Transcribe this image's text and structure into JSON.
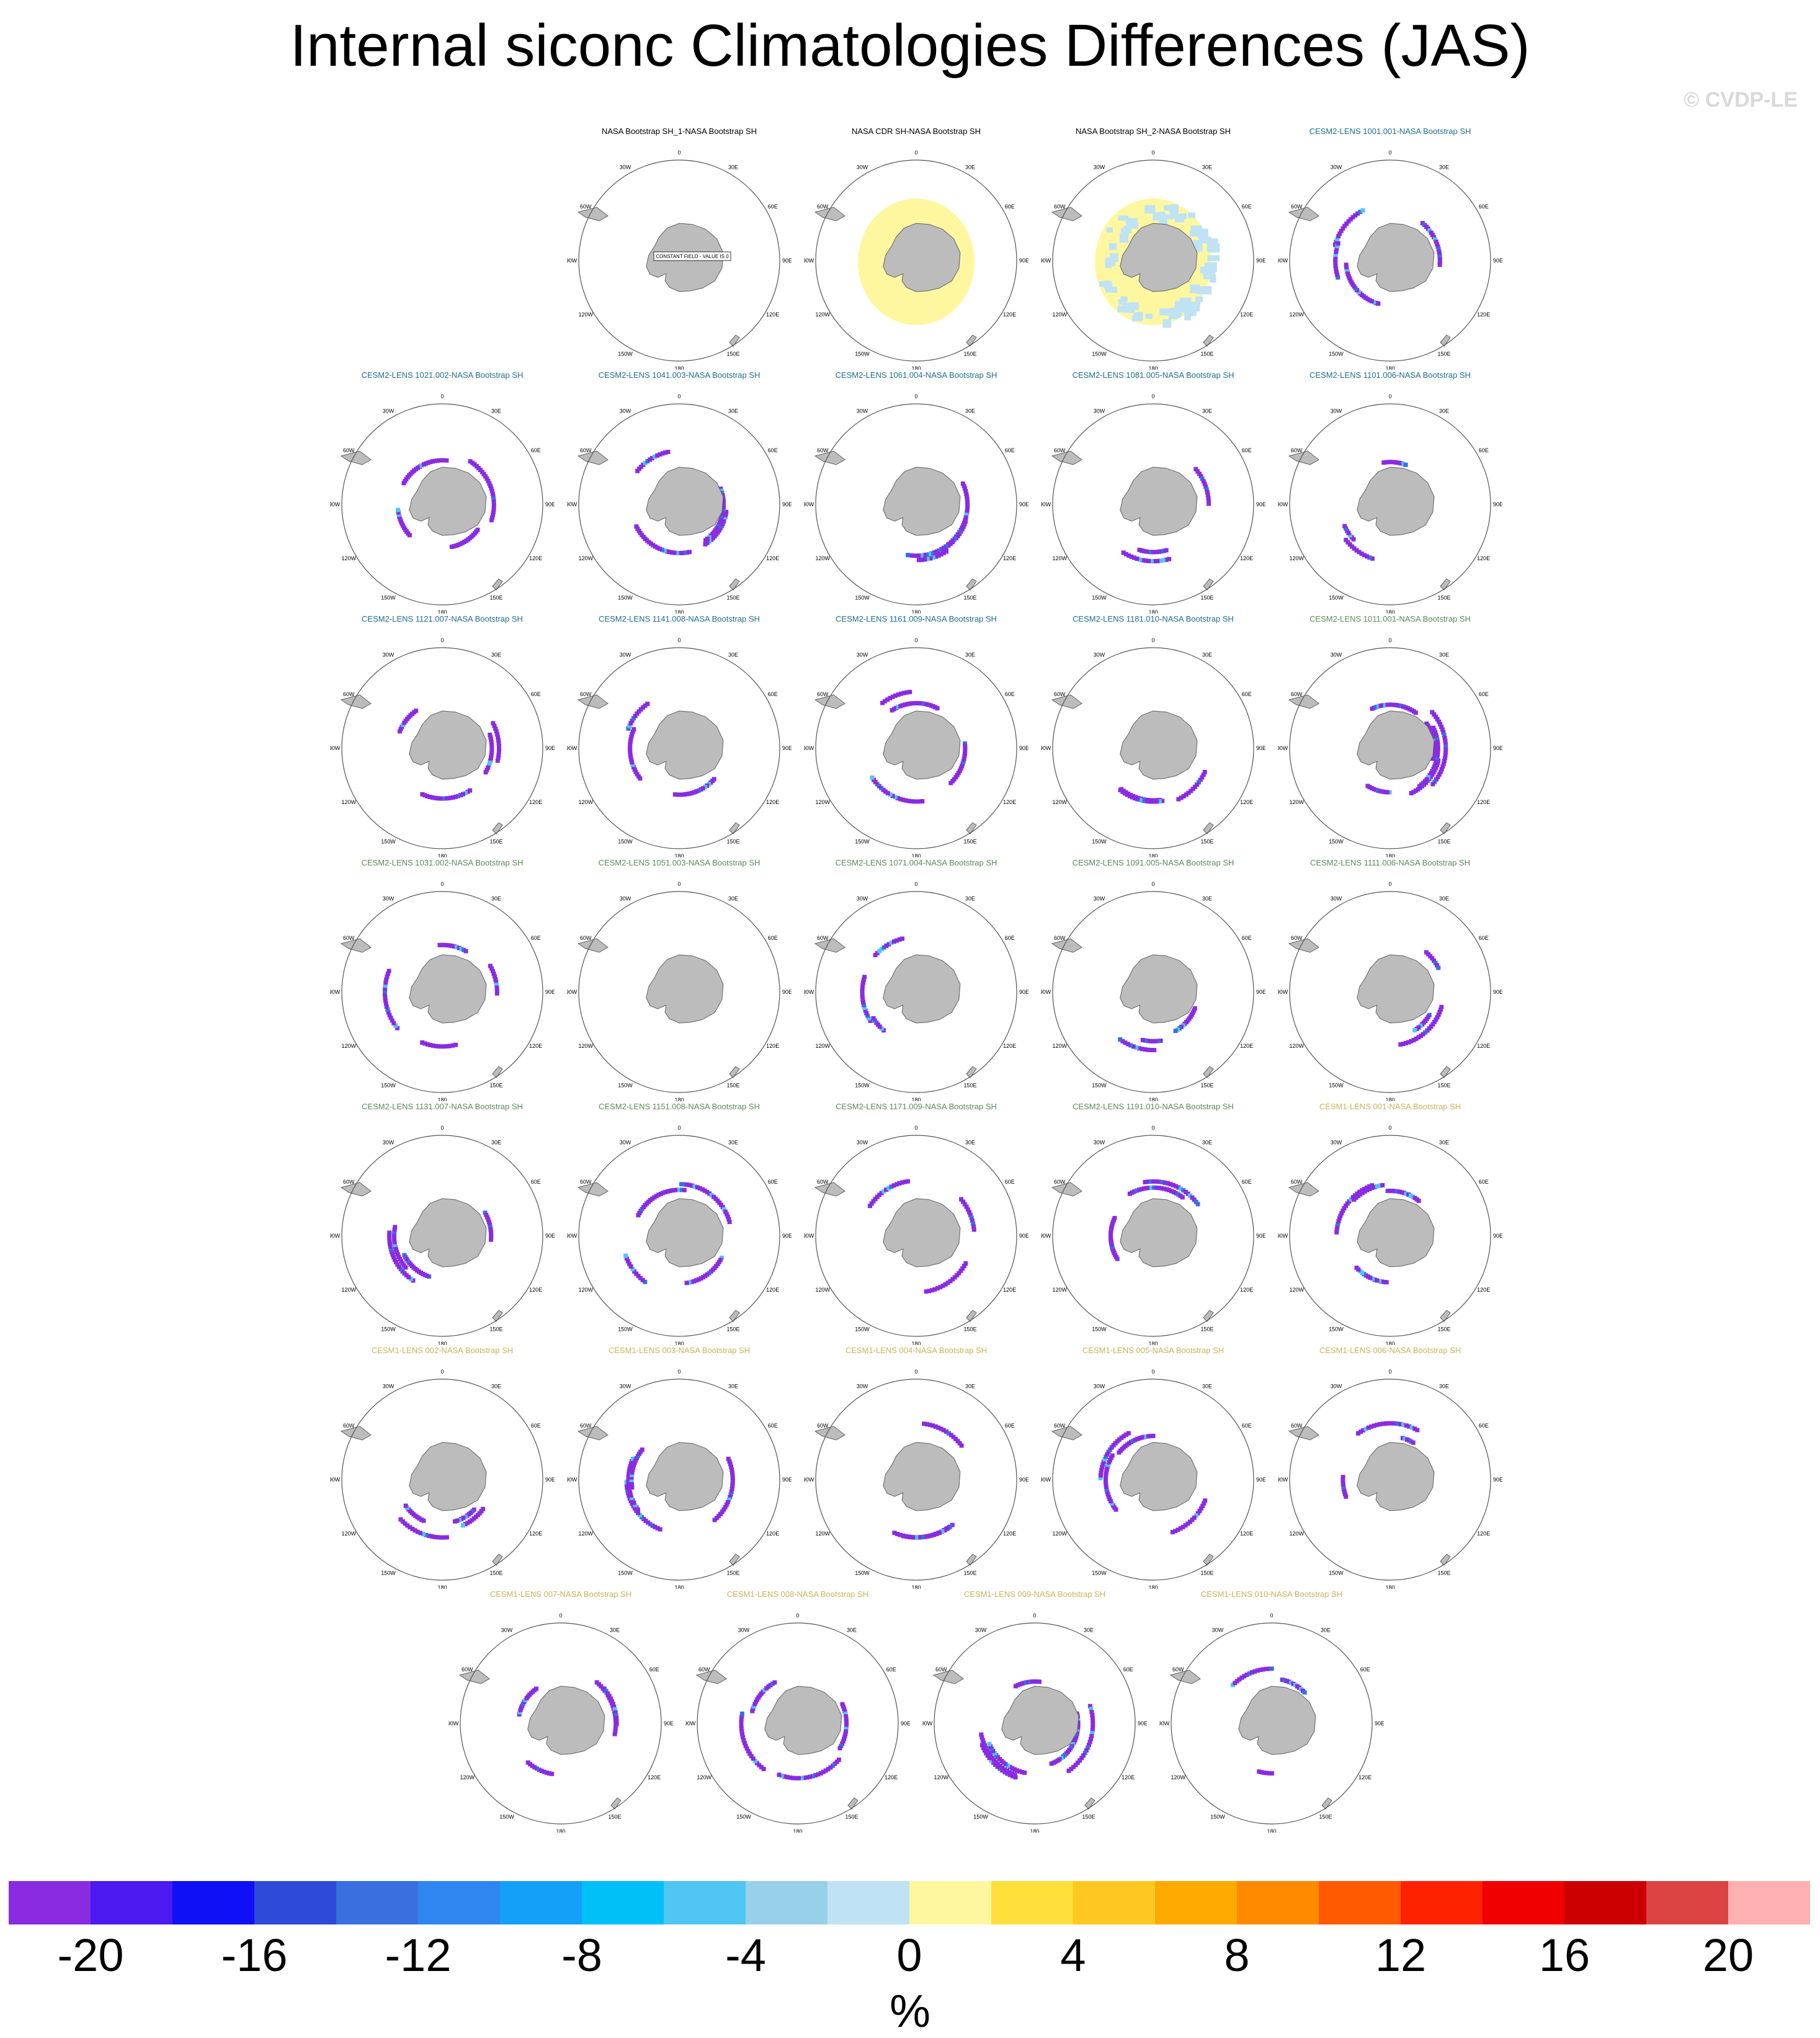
{
  "title": "Internal siconc Climatologies Differences (JAS)",
  "copyright": "© CVDP-LE",
  "lon_labels": [
    "0",
    "30E",
    "60E",
    "90E",
    "120E",
    "150E",
    "180",
    "150W",
    "120W",
    "90W",
    "60W",
    "30W"
  ],
  "colors": {
    "land": "#bcbcbc",
    "coast": "#606060",
    "title_obs": "#000000",
    "title_cesm2_a": "#1f6f8b",
    "title_cesm2_b": "#5b8a5b",
    "title_cesm1": "#c8b45a"
  },
  "constant_field_note": "CONSTANT FIELD - VALUE IS 0",
  "panels": [
    {
      "title": "NASA Bootstrap SH_1-NASA Bootstrap SH",
      "group": "obs",
      "pattern": "constant"
    },
    {
      "title": "NASA CDR SH-NASA Bootstrap SH",
      "group": "obs",
      "pattern": "yellow_ring"
    },
    {
      "title": "NASA Bootstrap SH_2-NASA Bootstrap SH",
      "group": "obs",
      "pattern": "yellow_blue_ring"
    },
    {
      "title": "CESM2-LENS 1001.001-NASA Bootstrap SH",
      "group": "cesm2a",
      "pattern": "arcs",
      "seed": 1
    },
    {
      "title": "CESM2-LENS 1021.002-NASA Bootstrap SH",
      "group": "cesm2a",
      "pattern": "arcs",
      "seed": 2
    },
    {
      "title": "CESM2-LENS 1041.003-NASA Bootstrap SH",
      "group": "cesm2a",
      "pattern": "arcs",
      "seed": 3
    },
    {
      "title": "CESM2-LENS 1061.004-NASA Bootstrap SH",
      "group": "cesm2a",
      "pattern": "arcs",
      "seed": 4
    },
    {
      "title": "CESM2-LENS 1081.005-NASA Bootstrap SH",
      "group": "cesm2a",
      "pattern": "sparse",
      "seed": 5
    },
    {
      "title": "CESM2-LENS 1101.006-NASA Bootstrap SH",
      "group": "cesm2a",
      "pattern": "sparse",
      "seed": 6
    },
    {
      "title": "CESM2-LENS 1121.007-NASA Bootstrap SH",
      "group": "cesm2a",
      "pattern": "arcs",
      "seed": 7
    },
    {
      "title": "CESM2-LENS 1141.008-NASA Bootstrap SH",
      "group": "cesm2a",
      "pattern": "sparse",
      "seed": 8
    },
    {
      "title": "CESM2-LENS 1161.009-NASA Bootstrap SH",
      "group": "cesm2a",
      "pattern": "arcs",
      "seed": 9
    },
    {
      "title": "CESM2-LENS 1181.010-NASA Bootstrap SH",
      "group": "cesm2a",
      "pattern": "sparse",
      "seed": 10
    },
    {
      "title": "CESM2-LENS 1011.001-NASA Bootstrap SH",
      "group": "cesm2b",
      "pattern": "strong",
      "seed": 11
    },
    {
      "title": "CESM2-LENS 1031.002-NASA Bootstrap SH",
      "group": "cesm2b",
      "pattern": "arcs",
      "seed": 12
    },
    {
      "title": "CESM2-LENS 1051.003-NASA Bootstrap SH",
      "group": "cesm2b",
      "pattern": "empty",
      "seed": 13
    },
    {
      "title": "CESM2-LENS 1071.004-NASA Bootstrap SH",
      "group": "cesm2b",
      "pattern": "sparse",
      "seed": 14
    },
    {
      "title": "CESM2-LENS 1091.005-NASA Bootstrap SH",
      "group": "cesm2b",
      "pattern": "sparse",
      "seed": 15
    },
    {
      "title": "CESM2-LENS 1111.006-NASA Bootstrap SH",
      "group": "cesm2b",
      "pattern": "sparse",
      "seed": 16
    },
    {
      "title": "CESM2-LENS 1131.007-NASA Bootstrap SH",
      "group": "cesm2b",
      "pattern": "arcs",
      "seed": 17
    },
    {
      "title": "CESM2-LENS 1151.008-NASA Bootstrap SH",
      "group": "cesm2b",
      "pattern": "arcs",
      "seed": 18
    },
    {
      "title": "CESM2-LENS 1171.009-NASA Bootstrap SH",
      "group": "cesm2b",
      "pattern": "sparse",
      "seed": 19
    },
    {
      "title": "CESM2-LENS 1191.010-NASA Bootstrap SH",
      "group": "cesm2b",
      "pattern": "arcs",
      "seed": 20
    },
    {
      "title": "CESM1-LENS 001-NASA Bootstrap SH",
      "group": "cesm1",
      "pattern": "arcs",
      "seed": 21
    },
    {
      "title": "CESM1-LENS 002-NASA Bootstrap SH",
      "group": "cesm1",
      "pattern": "arcs",
      "seed": 22
    },
    {
      "title": "CESM1-LENS 003-NASA Bootstrap SH",
      "group": "cesm1",
      "pattern": "arcs",
      "seed": 23
    },
    {
      "title": "CESM1-LENS 004-NASA Bootstrap SH",
      "group": "cesm1",
      "pattern": "sparse",
      "seed": 24
    },
    {
      "title": "CESM1-LENS 005-NASA Bootstrap SH",
      "group": "cesm1",
      "pattern": "arcs",
      "seed": 25
    },
    {
      "title": "CESM1-LENS 006-NASA Bootstrap SH",
      "group": "cesm1",
      "pattern": "sparse",
      "seed": 26
    },
    {
      "title": "CESM1-LENS 007-NASA Bootstrap SH",
      "group": "cesm1",
      "pattern": "arcs",
      "seed": 27
    },
    {
      "title": "CESM1-LENS 008-NASA Bootstrap SH",
      "group": "cesm1",
      "pattern": "arcs",
      "seed": 28
    },
    {
      "title": "CESM1-LENS 009-NASA Bootstrap SH",
      "group": "cesm1",
      "pattern": "strong",
      "seed": 29
    },
    {
      "title": "CESM1-LENS 010-NASA Bootstrap SH",
      "group": "cesm1",
      "pattern": "sparse",
      "seed": 30
    }
  ],
  "colorbar": {
    "units": "%",
    "colors": [
      "#8a2be2",
      "#4a1af0",
      "#1010f6",
      "#2e4ad8",
      "#3a6fe0",
      "#2f86f0",
      "#14a0f8",
      "#00c0f8",
      "#50c6f2",
      "#98d0ea",
      "#bfe2f4",
      "#fff7a0",
      "#ffe03a",
      "#ffc820",
      "#ffaa00",
      "#ff8a00",
      "#ff5a00",
      "#ff2200",
      "#f00000",
      "#cc0000",
      "#dc4444",
      "#ffb0b0"
    ],
    "tick_labels": [
      "-20",
      "-16",
      "-12",
      "-8",
      "-4",
      "0",
      "4",
      "8",
      "12",
      "16",
      "20"
    ]
  }
}
